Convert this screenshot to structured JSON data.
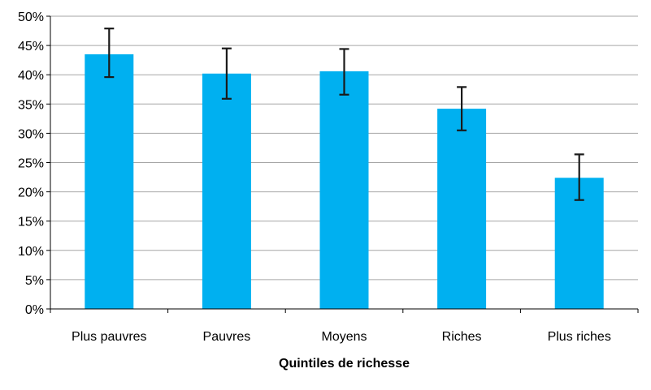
{
  "chart_data": {
    "type": "bar",
    "title": "",
    "xlabel": "Quintiles de richesse",
    "ylabel": "",
    "categories": [
      "Plus pauvres",
      "Pauvres",
      "Moyens",
      "Riches",
      "Plus riches"
    ],
    "values": [
      43.5,
      40.2,
      40.6,
      34.2,
      22.4
    ],
    "error_low": [
      39.6,
      35.9,
      36.6,
      30.5,
      18.6
    ],
    "error_high": [
      47.9,
      44.5,
      44.4,
      37.9,
      26.4
    ],
    "ylim": [
      0,
      50
    ],
    "yticks": [
      0,
      5,
      10,
      15,
      20,
      25,
      30,
      35,
      40,
      45,
      50
    ],
    "ytick_labels": [
      "0%",
      "5%",
      "10%",
      "15%",
      "20%",
      "25%",
      "30%",
      "35%",
      "40%",
      "45%",
      "50%"
    ],
    "grid": true,
    "bar_color": "#00b0f0",
    "error_bar_color": "#1a1a1a",
    "grid_color": "#a6a6a6"
  }
}
